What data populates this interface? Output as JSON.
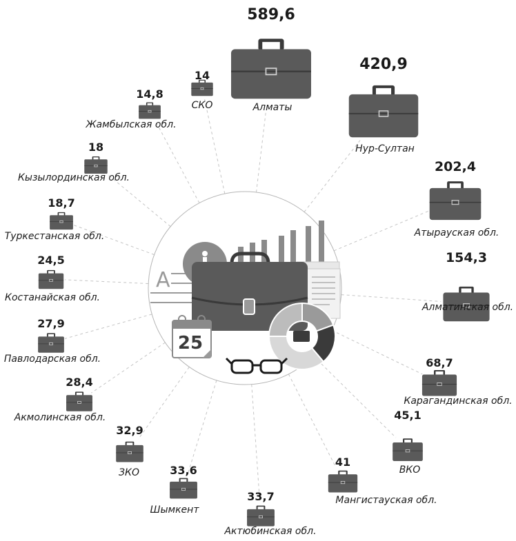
{
  "chart_data": {
    "type": "bubble",
    "title": "",
    "unit": "",
    "categories": [
      "Алматы",
      "Нур-Султан",
      "Атырауская обл.",
      "Алматинская обл.",
      "Карагандинская обл.",
      "ВКО",
      "Мангистауская обл.",
      "Актюбинская обл.",
      "Шымкент",
      "ЗКО",
      "Акмолинская обл.",
      "Павлодарская обл.",
      "Костанайская обл.",
      "Туркестанская обл.",
      "Кызылординская обл.",
      "Жамбылская обл.",
      "СКО"
    ],
    "value_labels": [
      "589,6",
      "420,9",
      "202,4",
      "154,3",
      "68,7",
      "45,1",
      "41",
      "33,7",
      "33,6",
      "32,9",
      "28,4",
      "27,9",
      "24,5",
      "18,7",
      "18",
      "14,8",
      "14"
    ],
    "values": [
      589.6,
      420.9,
      202.4,
      154.3,
      68.7,
      45.1,
      41,
      33.7,
      33.6,
      32.9,
      28.4,
      27.9,
      24.5,
      18.7,
      18,
      14.8,
      14
    ],
    "marker": "briefcase-icon",
    "colors": {
      "briefcase": "#5a5a5a",
      "dark": "#3a3a3a",
      "light": "#9a9a9a",
      "circle": "#b5b5b5",
      "connector": "#c4c4c4",
      "text": "#1a1a1a"
    },
    "center": {
      "calendar_day": "25",
      "letter": "A",
      "icon_names": [
        "person-arrows-icon",
        "bar-chart-icon",
        "document-icon",
        "briefcase-icon",
        "calendar-icon",
        "donut-chart-icon",
        "glasses-icon"
      ]
    }
  }
}
